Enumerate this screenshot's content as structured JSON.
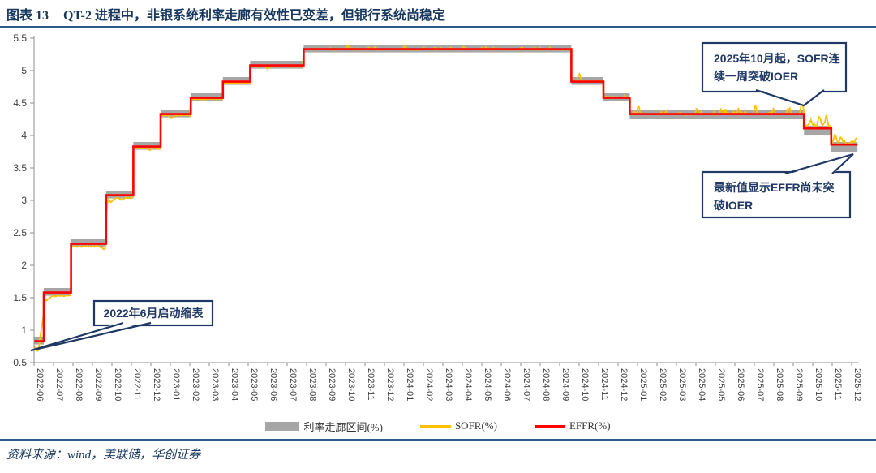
{
  "figure": {
    "label": "图表 13",
    "title": "QT-2 进程中，非银系统利率走廊有效性已变差，但银行系统尚稳定",
    "source": "资料来源：wind，美联储，华创证券"
  },
  "colors": {
    "accent_navy": "#17375E",
    "callout_navy": "#1F3864",
    "rule_blue": "#2E5A8B",
    "band_gray": "#A6A6A6",
    "sofr_yellow": "#FFC000",
    "effr_red": "#FF0000"
  },
  "chart_data": {
    "type": "line",
    "title": "QT-2 进程中，非银系统利率走廊有效性已变差，但银行系统尚稳定",
    "xlabel": "",
    "ylabel": "",
    "ylim": [
      0.5,
      5.5
    ],
    "ytick_step": 0.5,
    "grid": false,
    "legend_position": "bottom",
    "x_labels": [
      "2022-06",
      "2022-07",
      "2022-08",
      "2022-09",
      "2022-10",
      "2022-11",
      "2022-12",
      "2023-01",
      "2023-02",
      "2023-03",
      "2023-04",
      "2023-05",
      "2023-06",
      "2023-07",
      "2023-08",
      "2023-09",
      "2023-10",
      "2023-11",
      "2023-12",
      "2024-01",
      "2024-02",
      "2024-03",
      "2024-04",
      "2024-05",
      "2024-06",
      "2024-07",
      "2024-08",
      "2024-09",
      "2024-10",
      "2024-11",
      "2024-12",
      "2025-01",
      "2025-02",
      "2025-03",
      "2025-04",
      "2025-05",
      "2025-06",
      "2025-07",
      "2025-08",
      "2025-09",
      "2025-10",
      "2025-11",
      "2025-12"
    ],
    "legend": [
      {
        "label": "利率走廊区间(%)",
        "color": "#A6A6A6",
        "kind": "band"
      },
      {
        "label": "SOFR(%)",
        "color": "#FFC000",
        "kind": "line"
      },
      {
        "label": "EFFR(%)",
        "color": "#FF0000",
        "kind": "line"
      }
    ],
    "regimes": [
      {
        "from": 0.0,
        "to": 0.5,
        "band": [
          0.78,
          0.9
        ],
        "effr": 0.83,
        "sofr": 0.77,
        "noise": 0.015,
        "spiky": 0
      },
      {
        "from": 0.5,
        "to": 1.9,
        "band": [
          1.53,
          1.65
        ],
        "effr": 1.58,
        "sofr": 1.53,
        "noise": 0.012,
        "spiky": 0
      },
      {
        "from": 1.9,
        "to": 3.7,
        "band": [
          2.28,
          2.4
        ],
        "effr": 2.33,
        "sofr": 2.29,
        "noise": 0.012,
        "spiky": 0
      },
      {
        "from": 3.7,
        "to": 5.1,
        "band": [
          3.03,
          3.15
        ],
        "effr": 3.08,
        "sofr": 3.04,
        "noise": 0.015,
        "spiky": 0
      },
      {
        "from": 5.1,
        "to": 6.5,
        "band": [
          3.78,
          3.9
        ],
        "effr": 3.83,
        "sofr": 3.8,
        "noise": 0.01,
        "spiky": 0
      },
      {
        "from": 6.5,
        "to": 8.05,
        "band": [
          4.28,
          4.4
        ],
        "effr": 4.33,
        "sofr": 4.31,
        "noise": 0.01,
        "spiky": 0
      },
      {
        "from": 8.05,
        "to": 9.7,
        "band": [
          4.53,
          4.65
        ],
        "effr": 4.58,
        "sofr": 4.56,
        "noise": 0.008,
        "spiky": 0
      },
      {
        "from": 9.7,
        "to": 11.1,
        "band": [
          4.78,
          4.9
        ],
        "effr": 4.83,
        "sofr": 4.81,
        "noise": 0.008,
        "spiky": 0
      },
      {
        "from": 11.1,
        "to": 13.85,
        "band": [
          5.03,
          5.15
        ],
        "effr": 5.08,
        "sofr": 5.06,
        "noise": 0.008,
        "spiky": 0.02
      },
      {
        "from": 13.85,
        "to": 27.6,
        "band": [
          5.28,
          5.4
        ],
        "effr": 5.33,
        "sofr": 5.325,
        "noise": 0.008,
        "spiky": 0.03
      },
      {
        "from": 27.6,
        "to": 29.25,
        "band": [
          4.78,
          4.9
        ],
        "effr": 4.83,
        "sofr": 4.84,
        "noise": 0.01,
        "spiky": 0.03
      },
      {
        "from": 29.25,
        "to": 30.6,
        "band": [
          4.53,
          4.65
        ],
        "effr": 4.58,
        "sofr": 4.59,
        "noise": 0.008,
        "spiky": 0.02
      },
      {
        "from": 30.6,
        "to": 39.55,
        "band": [
          4.25,
          4.4
        ],
        "effr": 4.33,
        "sofr": 4.33,
        "noise": 0.012,
        "spiky": 0.07
      },
      {
        "from": 39.55,
        "to": 40.95,
        "band": [
          4.0,
          4.15
        ],
        "effr": 4.11,
        "sofr": 4.16,
        "noise": 0.018,
        "spiky": 0.08
      },
      {
        "from": 40.95,
        "to": 42.3,
        "band": [
          3.75,
          3.9
        ],
        "effr": 3.86,
        "sofr": 3.9,
        "noise": 0.015,
        "spiky": 0.06
      }
    ],
    "sofr_events": [
      {
        "x": 0.18,
        "v": 0.68,
        "w": 0.22
      },
      {
        "x": 0.6,
        "v": 1.45,
        "w": 0.35
      },
      {
        "x": 3.6,
        "v": 2.24,
        "w": 0.18
      },
      {
        "x": 3.95,
        "v": 2.97,
        "w": 0.22
      },
      {
        "x": 4.5,
        "v": 3.0,
        "w": 0.18
      },
      {
        "x": 5.95,
        "v": 3.77,
        "w": 0.12
      },
      {
        "x": 7.05,
        "v": 4.26,
        "w": 0.18
      },
      {
        "x": 12.0,
        "v": 5.02,
        "w": 0.1
      },
      {
        "x": 16.1,
        "v": 5.39,
        "w": 0.12
      },
      {
        "x": 17.5,
        "v": 5.37,
        "w": 0.1
      },
      {
        "x": 19.05,
        "v": 5.4,
        "w": 0.1
      },
      {
        "x": 20.6,
        "v": 5.37,
        "w": 0.08
      },
      {
        "x": 22.05,
        "v": 5.38,
        "w": 0.1
      },
      {
        "x": 23.6,
        "v": 5.36,
        "w": 0.08
      },
      {
        "x": 25.05,
        "v": 5.37,
        "w": 0.1
      },
      {
        "x": 26.5,
        "v": 5.36,
        "w": 0.08
      },
      {
        "x": 28.0,
        "v": 4.97,
        "w": 0.12
      },
      {
        "x": 31.05,
        "v": 4.49,
        "w": 0.1
      },
      {
        "x": 32.5,
        "v": 4.41,
        "w": 0.08
      },
      {
        "x": 34.05,
        "v": 4.45,
        "w": 0.09
      },
      {
        "x": 35.3,
        "v": 4.43,
        "w": 0.08
      },
      {
        "x": 36.2,
        "v": 4.44,
        "w": 0.08
      },
      {
        "x": 37.05,
        "v": 4.5,
        "w": 0.1
      },
      {
        "x": 38.0,
        "v": 4.44,
        "w": 0.08
      },
      {
        "x": 38.8,
        "v": 4.45,
        "w": 0.08
      },
      {
        "x": 39.45,
        "v": 4.54,
        "w": 0.12
      },
      {
        "x": 39.9,
        "v": 4.25,
        "w": 0.1
      },
      {
        "x": 40.35,
        "v": 4.31,
        "w": 0.12
      },
      {
        "x": 40.7,
        "v": 4.33,
        "w": 0.1
      },
      {
        "x": 41.15,
        "v": 4.03,
        "w": 0.12
      },
      {
        "x": 41.45,
        "v": 3.99,
        "w": 0.1
      },
      {
        "x": 41.8,
        "v": 3.85,
        "w": 0.15
      },
      {
        "x": 42.25,
        "v": 3.98,
        "w": 0.1
      }
    ],
    "annotations": [
      {
        "id": "qt-start",
        "lines": [
          "2022年6月启动缩表"
        ]
      },
      {
        "id": "sofr-break",
        "lines": [
          "2025年10月起，SOFR连",
          "续一周突破IOER"
        ]
      },
      {
        "id": "effr-hold",
        "lines": [
          "最新值显示EFFR尚未突",
          "破IOER"
        ]
      }
    ]
  }
}
